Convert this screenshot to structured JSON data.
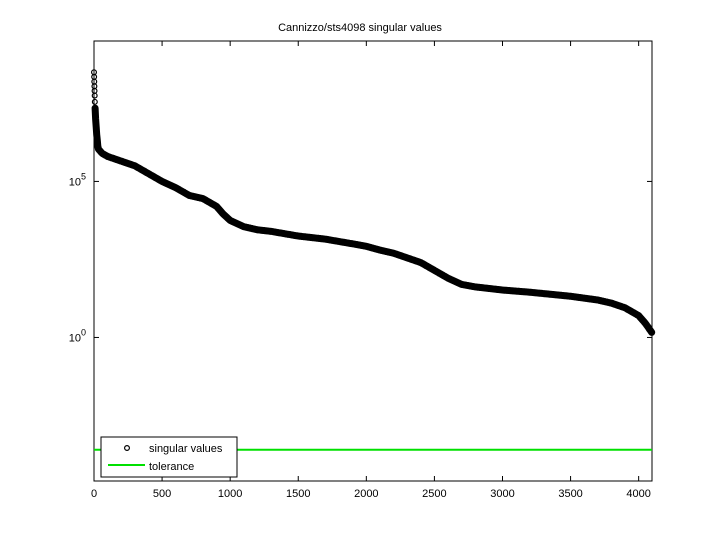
{
  "chart_data": {
    "type": "scatter",
    "title": "Cannizzo/sts4098 singular values",
    "xlabel": "",
    "ylabel": "",
    "yscale": "log",
    "xlim": [
      0,
      4098
    ],
    "ylim_log10": [
      -4.6,
      9.5
    ],
    "x_ticks": [
      0,
      500,
      1000,
      1500,
      2000,
      2500,
      3000,
      3500,
      4000
    ],
    "x_tick_labels": [
      "0",
      "500",
      "1000",
      "1500",
      "2000",
      "2500",
      "3000",
      "3500",
      "4000"
    ],
    "y_ticks_log10": [
      0,
      5
    ],
    "y_tick_labels": [
      "10^0",
      "10^5"
    ],
    "grid": false,
    "legend": {
      "position": "lower left",
      "entries": [
        "singular values",
        "tolerance"
      ]
    },
    "series": [
      {
        "name": "singular values",
        "marker": "o",
        "color": "#000000",
        "x": [
          0,
          1,
          2,
          3,
          4,
          5,
          6,
          8,
          10,
          15,
          20,
          30,
          60,
          100,
          200,
          300,
          400,
          500,
          600,
          700,
          800,
          900,
          950,
          1000,
          1100,
          1200,
          1300,
          1500,
          1700,
          1900,
          2000,
          2100,
          2200,
          2300,
          2400,
          2500,
          2600,
          2700,
          2800,
          3000,
          3200,
          3500,
          3700,
          3800,
          3900,
          4000,
          4050,
          4098
        ],
        "log10_values": [
          8.5,
          8.35,
          8.2,
          8.05,
          7.9,
          7.75,
          7.55,
          7.35,
          7.15,
          6.8,
          6.5,
          6.05,
          5.9,
          5.8,
          5.65,
          5.5,
          5.25,
          5.0,
          4.8,
          4.55,
          4.45,
          4.2,
          3.95,
          3.75,
          3.55,
          3.45,
          3.4,
          3.25,
          3.15,
          3.0,
          2.92,
          2.8,
          2.7,
          2.55,
          2.4,
          2.15,
          1.9,
          1.7,
          1.62,
          1.52,
          1.45,
          1.32,
          1.2,
          1.1,
          0.95,
          0.7,
          0.45,
          0.15
        ]
      },
      {
        "name": "tolerance",
        "marker": "line",
        "color": "#00e000",
        "log10_value": -3.6
      }
    ]
  }
}
